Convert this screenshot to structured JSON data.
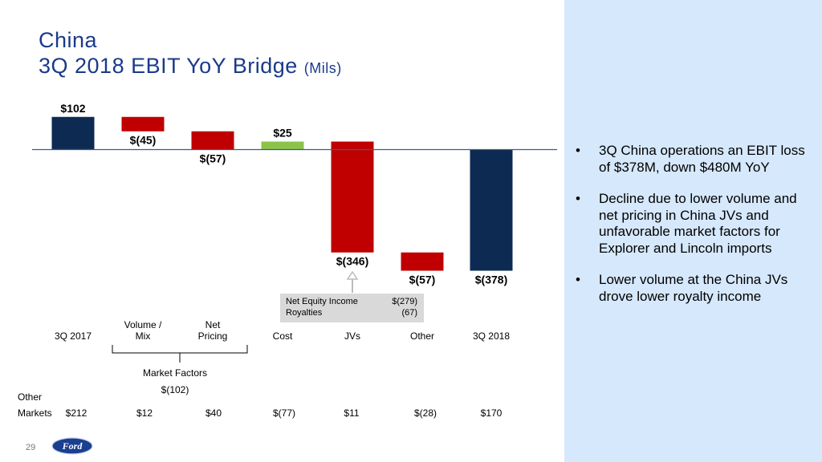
{
  "title": {
    "line1": "China",
    "line2": "3Q 2018 EBIT YoY Bridge",
    "unit": "(Mils)"
  },
  "chart_data": {
    "type": "bar",
    "categories": [
      "3Q 2017",
      "Volume / Mix",
      "Net Pricing",
      "Cost",
      "JVs",
      "Other",
      "3Q 2018"
    ],
    "category_labels": [
      {
        "top": "",
        "bottom": "3Q 2017"
      },
      {
        "top": "Volume /",
        "bottom": "Mix"
      },
      {
        "top": "Net",
        "bottom": "Pricing"
      },
      {
        "top": "",
        "bottom": "Cost"
      },
      {
        "top": "",
        "bottom": "JVs"
      },
      {
        "top": "",
        "bottom": "Other"
      },
      {
        "top": "",
        "bottom": "3Q 2018"
      }
    ],
    "bars": [
      {
        "label": "$102",
        "start": 0,
        "end": 102,
        "kind": "total"
      },
      {
        "label": "$(45)",
        "start": 102,
        "end": 57,
        "kind": "decrease"
      },
      {
        "label": "$(57)",
        "start": 57,
        "end": 0,
        "kind": "decrease"
      },
      {
        "label": "$25",
        "start": 0,
        "end": 25,
        "kind": "increase"
      },
      {
        "label": "$(346)",
        "start": 25,
        "end": -321,
        "kind": "decrease"
      },
      {
        "label": "$(57)",
        "start": -321,
        "end": -378,
        "kind": "decrease"
      },
      {
        "label": "$(378)",
        "start": 0,
        "end": -378,
        "kind": "total"
      }
    ],
    "colors": {
      "total": "#0d2a52",
      "decrease": "#c00000",
      "increase": "#8bc34a",
      "axis": "#3a5a8a"
    }
  },
  "callout": {
    "rows": [
      {
        "label": "Net Equity Income",
        "value": "$(279)"
      },
      {
        "label": "Royalties",
        "value": "(67)"
      }
    ]
  },
  "market_factors": {
    "label": "Market Factors",
    "value": "$(102)"
  },
  "other_markets": {
    "label_line1": "Other",
    "label_line2": "Markets",
    "values": [
      "$212",
      "$12",
      "$40",
      "$(77)",
      "$11",
      "$(28)",
      "$170"
    ]
  },
  "bullets": [
    "3Q China operations an EBIT loss of $378M, down $480M YoY",
    "Decline due to lower volume and net pricing in China JVs and unfavorable market factors for Explorer and Lincoln imports",
    "Lower volume at the China JVs drove lower royalty income"
  ],
  "bullet_glyph": "•",
  "page_number": "29",
  "logo_text": "Ford",
  "brand_colors": {
    "title": "#1a3a8a",
    "panel": "#d6e8fb",
    "logo": "#1a3f8f"
  }
}
